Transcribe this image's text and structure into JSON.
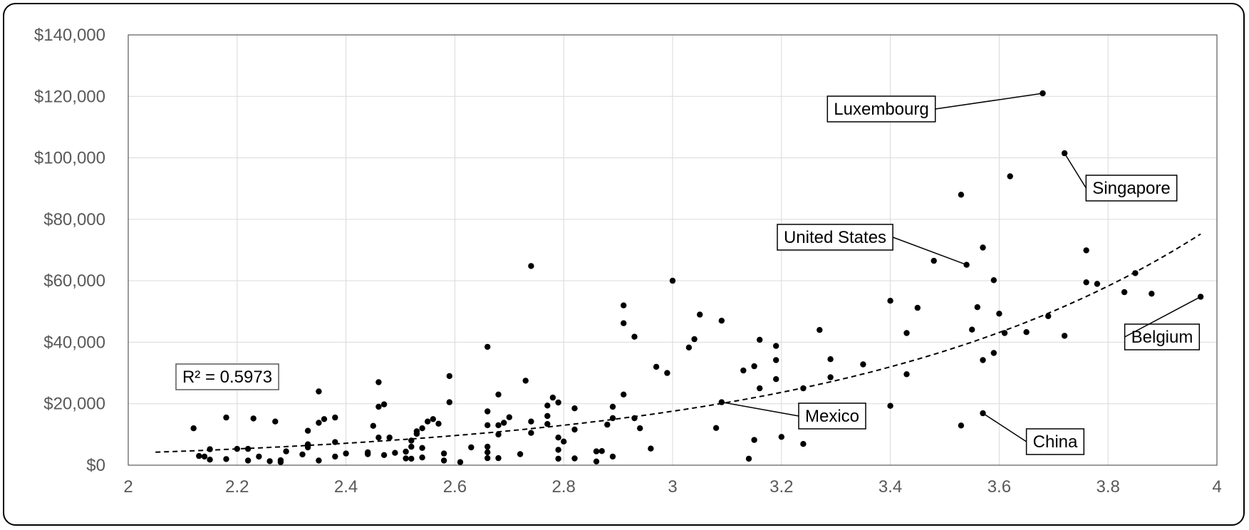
{
  "chart_data": {
    "type": "scatter",
    "xlim": [
      2,
      4
    ],
    "ylim": [
      0,
      140000
    ],
    "x_ticks": [
      "2",
      "2.2",
      "2.4",
      "2.6",
      "2.8",
      "3",
      "3.2",
      "3.4",
      "3.6",
      "3.8",
      "4"
    ],
    "y_ticks": [
      "$0",
      "$20,000",
      "$40,000",
      "$60,000",
      "$80,000",
      "$100,000",
      "$120,000",
      "$140,000"
    ],
    "grid": true,
    "legend": "none",
    "colors": {
      "points": "#000000",
      "grid": "#d9d9d9",
      "axis_text": "#595959",
      "trendline": "#000000"
    },
    "r_squared_label": "R² = 0.5973",
    "trendline": {
      "style": "dashed",
      "kind": "exponential",
      "x_range": [
        2.05,
        3.97
      ],
      "a": 195,
      "b": 1.5
    },
    "points": [
      [
        2.12,
        12000
      ],
      [
        2.13,
        3000
      ],
      [
        2.14,
        2800
      ],
      [
        2.15,
        1800
      ],
      [
        2.15,
        5200
      ],
      [
        2.18,
        15500
      ],
      [
        2.18,
        2000
      ],
      [
        2.2,
        5300
      ],
      [
        2.22,
        5300
      ],
      [
        2.22,
        1500
      ],
      [
        2.23,
        15200
      ],
      [
        2.24,
        2800
      ],
      [
        2.26,
        1300
      ],
      [
        2.27,
        14200
      ],
      [
        2.28,
        1000
      ],
      [
        2.28,
        1600
      ],
      [
        2.29,
        4500
      ],
      [
        2.32,
        3500
      ],
      [
        2.33,
        5800
      ],
      [
        2.33,
        6800
      ],
      [
        2.33,
        11200
      ],
      [
        2.35,
        1500
      ],
      [
        2.35,
        13800
      ],
      [
        2.35,
        24000
      ],
      [
        2.36,
        15000
      ],
      [
        2.38,
        15500
      ],
      [
        2.38,
        7500
      ],
      [
        2.38,
        2800
      ],
      [
        2.4,
        3800
      ],
      [
        2.44,
        3600
      ],
      [
        2.44,
        4200
      ],
      [
        2.45,
        12800
      ],
      [
        2.46,
        9000
      ],
      [
        2.46,
        19000
      ],
      [
        2.46,
        27000
      ],
      [
        2.47,
        19800
      ],
      [
        2.47,
        3300
      ],
      [
        2.48,
        9000
      ],
      [
        2.49,
        4000
      ],
      [
        2.51,
        4400
      ],
      [
        2.51,
        2200
      ],
      [
        2.52,
        8000
      ],
      [
        2.52,
        6000
      ],
      [
        2.52,
        2100
      ],
      [
        2.53,
        10200
      ],
      [
        2.53,
        11000
      ],
      [
        2.54,
        12000
      ],
      [
        2.54,
        5600
      ],
      [
        2.54,
        2500
      ],
      [
        2.55,
        14200
      ],
      [
        2.56,
        15000
      ],
      [
        2.57,
        13500
      ],
      [
        2.58,
        1500
      ],
      [
        2.58,
        3800
      ],
      [
        2.59,
        20500
      ],
      [
        2.59,
        29000
      ],
      [
        2.61,
        1000
      ],
      [
        2.63,
        5800
      ],
      [
        2.66,
        38500
      ],
      [
        2.66,
        17500
      ],
      [
        2.66,
        13000
      ],
      [
        2.66,
        6000
      ],
      [
        2.66,
        4200
      ],
      [
        2.66,
        2300
      ],
      [
        2.68,
        23000
      ],
      [
        2.68,
        13000
      ],
      [
        2.68,
        10000
      ],
      [
        2.68,
        2300
      ],
      [
        2.69,
        13800
      ],
      [
        2.7,
        15600
      ],
      [
        2.72,
        3600
      ],
      [
        2.73,
        27500
      ],
      [
        2.74,
        64800
      ],
      [
        2.74,
        14200
      ],
      [
        2.74,
        10500
      ],
      [
        2.77,
        13400
      ],
      [
        2.77,
        16000
      ],
      [
        2.77,
        19400
      ],
      [
        2.78,
        22000
      ],
      [
        2.79,
        20400
      ],
      [
        2.79,
        9000
      ],
      [
        2.79,
        5000
      ],
      [
        2.79,
        2100
      ],
      [
        2.8,
        7700
      ],
      [
        2.82,
        18500
      ],
      [
        2.82,
        11600
      ],
      [
        2.82,
        2200
      ],
      [
        2.86,
        4500
      ],
      [
        2.86,
        1200
      ],
      [
        2.87,
        4600
      ],
      [
        2.88,
        13200
      ],
      [
        2.89,
        19000
      ],
      [
        2.89,
        15300
      ],
      [
        2.89,
        2800
      ],
      [
        2.91,
        52000
      ],
      [
        2.91,
        46200
      ],
      [
        2.91,
        23000
      ],
      [
        2.93,
        41800
      ],
      [
        2.93,
        15300
      ],
      [
        2.94,
        12000
      ],
      [
        2.96,
        5400
      ],
      [
        2.97,
        32000
      ],
      [
        2.99,
        30000
      ],
      [
        3,
        60000
      ],
      [
        3.03,
        38300
      ],
      [
        3.04,
        41000
      ],
      [
        3.05,
        49000
      ],
      [
        3.08,
        12100
      ],
      [
        3.09,
        47000
      ],
      [
        3.09,
        20500
      ],
      [
        3.13,
        30800
      ],
      [
        3.14,
        2100
      ],
      [
        3.15,
        8200
      ],
      [
        3.15,
        32200
      ],
      [
        3.16,
        40800
      ],
      [
        3.16,
        25000
      ],
      [
        3.19,
        38800
      ],
      [
        3.19,
        34200
      ],
      [
        3.19,
        28000
      ],
      [
        3.2,
        9200
      ],
      [
        3.24,
        25000
      ],
      [
        3.24,
        6900
      ],
      [
        3.27,
        44000
      ],
      [
        3.29,
        28600
      ],
      [
        3.29,
        34500
      ],
      [
        3.35,
        32800
      ],
      [
        3.4,
        53500
      ],
      [
        3.4,
        19300
      ],
      [
        3.43,
        43000
      ],
      [
        3.43,
        29600
      ],
      [
        3.45,
        51200
      ],
      [
        3.48,
        66500
      ],
      [
        3.53,
        88000
      ],
      [
        3.53,
        12900
      ],
      [
        3.54,
        65200
      ],
      [
        3.55,
        44100
      ],
      [
        3.56,
        51400
      ],
      [
        3.57,
        70800
      ],
      [
        3.57,
        34200
      ],
      [
        3.57,
        16900
      ],
      [
        3.59,
        60200
      ],
      [
        3.59,
        36500
      ],
      [
        3.6,
        49300
      ],
      [
        3.61,
        43000
      ],
      [
        3.62,
        94000
      ],
      [
        3.65,
        43300
      ],
      [
        3.68,
        121000
      ],
      [
        3.69,
        48500
      ],
      [
        3.72,
        101500
      ],
      [
        3.72,
        42100
      ],
      [
        3.76,
        69900
      ],
      [
        3.76,
        59500
      ],
      [
        3.78,
        59000
      ],
      [
        3.83,
        56300
      ],
      [
        3.85,
        62500
      ],
      [
        3.88,
        55800
      ],
      [
        3.97,
        54800
      ]
    ],
    "annotations": [
      {
        "label": "Luxembourg",
        "point": [
          3.68,
          121000
        ],
        "anchor": "left"
      },
      {
        "label": "Singapore",
        "point": [
          3.72,
          101500
        ],
        "anchor": "right"
      },
      {
        "label": "United States",
        "point": [
          3.54,
          65200
        ],
        "anchor": "left"
      },
      {
        "label": "Belgium",
        "point": [
          3.97,
          54800
        ],
        "anchor": "right"
      },
      {
        "label": "Mexico",
        "point": [
          3.09,
          20500
        ],
        "anchor": "right"
      },
      {
        "label": "China",
        "point": [
          3.57,
          16900
        ],
        "anchor": "right"
      }
    ]
  }
}
